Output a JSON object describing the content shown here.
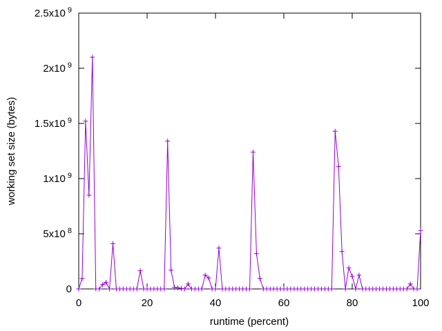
{
  "chart_data": {
    "type": "line",
    "xlabel": "runtime (percent)",
    "ylabel": "working set size (bytes)",
    "xlim": [
      0,
      100
    ],
    "ylim": [
      0,
      2500000000
    ],
    "x_ticks": [
      0,
      20,
      40,
      60,
      80,
      100
    ],
    "y_ticks": [
      {
        "value": 0,
        "base": "0",
        "exp": ""
      },
      {
        "value": 500000000,
        "base": "5x10",
        "exp": "8"
      },
      {
        "value": 1000000000,
        "base": "1x10",
        "exp": "9"
      },
      {
        "value": 1500000000,
        "base": "1.5x10",
        "exp": "9"
      },
      {
        "value": 2000000000,
        "base": "2x10",
        "exp": "9"
      },
      {
        "value": 2500000000,
        "base": "2.5x10",
        "exp": "9"
      }
    ],
    "line_color": "#9400d3",
    "marker": "plus",
    "grid": false,
    "x": [
      0,
      1,
      2,
      3,
      4,
      5,
      6,
      7,
      8,
      9,
      10,
      11,
      12,
      13,
      14,
      15,
      16,
      17,
      18,
      19,
      20,
      21,
      22,
      23,
      24,
      25,
      26,
      27,
      28,
      29,
      30,
      31,
      32,
      33,
      34,
      35,
      36,
      37,
      38,
      39,
      40,
      41,
      42,
      43,
      44,
      45,
      46,
      47,
      48,
      49,
      50,
      51,
      52,
      53,
      54,
      55,
      56,
      57,
      58,
      59,
      60,
      61,
      62,
      63,
      64,
      65,
      66,
      67,
      68,
      69,
      70,
      71,
      72,
      73,
      74,
      75,
      76,
      77,
      78,
      79,
      80,
      81,
      82,
      83,
      84,
      85,
      86,
      87,
      88,
      89,
      90,
      91,
      92,
      93,
      94,
      95,
      96,
      97,
      98,
      99,
      100
    ],
    "y": [
      0,
      95000000,
      1520000000,
      850000000,
      2100000000,
      0,
      0,
      40000000,
      60000000,
      0,
      410000000,
      0,
      0,
      0,
      0,
      0,
      0,
      0,
      165000000,
      0,
      0,
      0,
      0,
      0,
      0,
      0,
      1340000000,
      170000000,
      15000000,
      10000000,
      5000000,
      0,
      45000000,
      0,
      0,
      0,
      0,
      125000000,
      100000000,
      0,
      0,
      370000000,
      0,
      0,
      0,
      0,
      0,
      0,
      0,
      0,
      0,
      1240000000,
      320000000,
      95000000,
      0,
      0,
      0,
      0,
      0,
      0,
      0,
      0,
      0,
      0,
      0,
      0,
      0,
      0,
      0,
      0,
      0,
      0,
      0,
      0,
      0,
      1430000000,
      1110000000,
      340000000,
      0,
      190000000,
      115000000,
      0,
      125000000,
      0,
      0,
      0,
      0,
      0,
      0,
      0,
      0,
      0,
      0,
      0,
      0,
      0,
      0,
      45000000,
      0,
      0,
      530000000
    ]
  }
}
